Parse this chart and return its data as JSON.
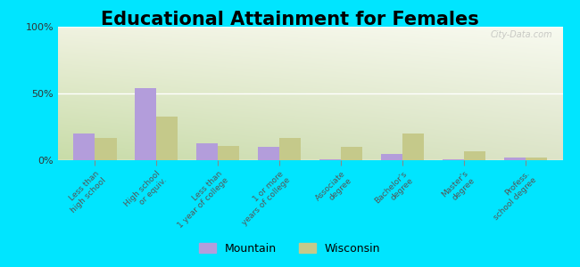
{
  "title": "Educational Attainment for Females",
  "categories": [
    "Less than\nhigh school",
    "High school\nor equiv.",
    "Less than\n1 year of college",
    "1 or more\nyears of college",
    "Associate\ndegree",
    "Bachelor's\ndegree",
    "Master's\ndegree",
    "Profess.\nschool degree"
  ],
  "mountain_values": [
    20.0,
    54.0,
    13.0,
    10.0,
    1.0,
    5.0,
    1.0,
    2.0
  ],
  "wisconsin_values": [
    17.0,
    33.0,
    11.0,
    17.0,
    10.0,
    20.0,
    7.0,
    2.0
  ],
  "mountain_color": "#b39ddb",
  "wisconsin_color": "#c5c98a",
  "ylim": [
    0,
    100
  ],
  "yticks": [
    0,
    50,
    100
  ],
  "ytick_labels": [
    "0%",
    "50%",
    "100%"
  ],
  "grad_top_left": "#c8d8a8",
  "grad_bottom_right": "#f0f2e0",
  "outer_bg": "#00e5ff",
  "title_fontsize": 15,
  "bar_width": 0.35,
  "legend_mountain": "Mountain",
  "legend_wisconsin": "Wisconsin",
  "watermark": "City-Data.com"
}
